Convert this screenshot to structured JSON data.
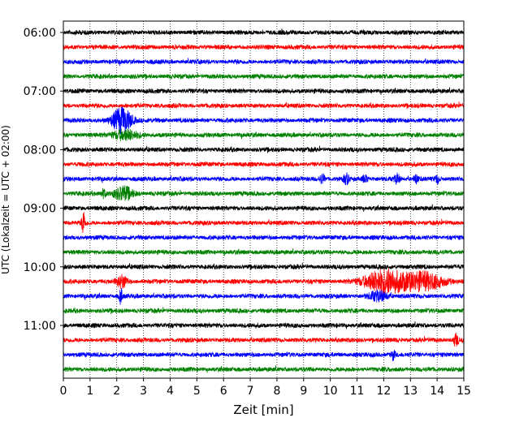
{
  "chart_data": {
    "type": "line",
    "title": "",
    "xlabel": "Zeit  [min]",
    "ylabel": "UTC (Lokalzeit = UTC + 02:00)",
    "xlim": [
      0,
      15
    ],
    "x_ticks": [
      "0",
      "1",
      "2",
      "3",
      "4",
      "5",
      "6",
      "7",
      "8",
      "9",
      "10",
      "11",
      "12",
      "13",
      "14",
      "15"
    ],
    "y_tick_labels": [
      "06:00",
      "07:00",
      "08:00",
      "09:00",
      "10:00",
      "11:00"
    ],
    "y_tick_every_traces": 4,
    "grid": "vertical-dotted",
    "trace_count": 24,
    "trace_colors": [
      "#000000",
      "#ff0000",
      "#0000ff",
      "#008000"
    ],
    "events": [
      {
        "trace": 6,
        "minute": 2.2,
        "amplitude": 1.0,
        "width": 0.35
      },
      {
        "trace": 7,
        "minute": 2.3,
        "amplitude": 0.35,
        "width": 0.5
      },
      {
        "trace": 10,
        "minute": 9.7,
        "amplitude": 0.35,
        "width": 0.1
      },
      {
        "trace": 10,
        "minute": 10.6,
        "amplitude": 0.35,
        "width": 0.1
      },
      {
        "trace": 10,
        "minute": 11.3,
        "amplitude": 0.3,
        "width": 0.1
      },
      {
        "trace": 10,
        "minute": 12.5,
        "amplitude": 0.35,
        "width": 0.1
      },
      {
        "trace": 10,
        "minute": 13.2,
        "amplitude": 0.3,
        "width": 0.08
      },
      {
        "trace": 10,
        "minute": 14.0,
        "amplitude": 0.3,
        "width": 0.08
      },
      {
        "trace": 11,
        "minute": 2.25,
        "amplitude": 0.5,
        "width": 0.35
      },
      {
        "trace": 11,
        "minute": 1.5,
        "amplitude": 0.3,
        "width": 0.1
      },
      {
        "trace": 13,
        "minute": 0.75,
        "amplitude": 1.0,
        "width": 0.06
      },
      {
        "trace": 17,
        "minute": 2.2,
        "amplitude": 0.45,
        "width": 0.2
      },
      {
        "trace": 17,
        "minute": 12.0,
        "amplitude": 0.9,
        "width": 0.7
      },
      {
        "trace": 17,
        "minute": 13.4,
        "amplitude": 0.7,
        "width": 0.8
      },
      {
        "trace": 18,
        "minute": 2.15,
        "amplitude": 0.6,
        "width": 0.06
      },
      {
        "trace": 18,
        "minute": 11.8,
        "amplitude": 0.35,
        "width": 0.35
      },
      {
        "trace": 21,
        "minute": 14.7,
        "amplitude": 0.45,
        "width": 0.1
      },
      {
        "trace": 22,
        "minute": 12.35,
        "amplitude": 0.35,
        "width": 0.08
      }
    ]
  }
}
